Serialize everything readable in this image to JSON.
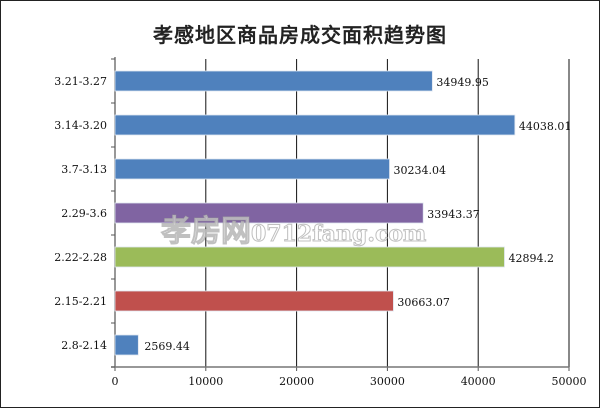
{
  "chart_data": {
    "type": "bar",
    "orientation": "horizontal",
    "title": "孝感地区商品房成交面积趋势图",
    "categories": [
      "3.21-3.27",
      "3.14-3.20",
      "3.7-3.13",
      "2.29-3.6",
      "2.22-2.28",
      "2.15-2.21",
      "2.8-2.14"
    ],
    "values": [
      34949.95,
      44038.01,
      30234.04,
      33943.37,
      42894.2,
      30663.07,
      2569.44
    ],
    "value_labels": [
      "34949.95",
      "44038.01",
      "30234.04",
      "33943.37",
      "42894.2",
      "30663.07",
      "2569.44"
    ],
    "colors": [
      "#4f81bd",
      "#4f81bd",
      "#4f81bd",
      "#8064a2",
      "#9bbb59",
      "#c0504d",
      "#4f81bd"
    ],
    "xlim": [
      0,
      50000
    ],
    "xticks": [
      "0",
      "10000",
      "20000",
      "30000",
      "40000",
      "50000"
    ],
    "xlabel": "",
    "ylabel": "",
    "grid": true,
    "legend": "none"
  },
  "watermark": {
    "text": "孝房网",
    "domain": "0712fang.com"
  }
}
